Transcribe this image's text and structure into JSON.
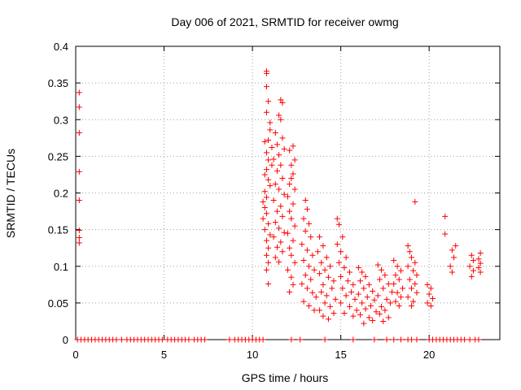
{
  "chart_data": {
    "type": "scatter",
    "title": "Day 006 of 2021, SRMTID for receiver owmg",
    "xlabel": "GPS time / hours",
    "ylabel": "SRMTID / TECUs",
    "xlim": [
      0,
      24
    ],
    "ylim": [
      0,
      0.4
    ],
    "x_ticks": [
      0,
      5,
      10,
      15,
      20
    ],
    "x_tick_labels": [
      "0",
      "5",
      "10",
      "15",
      "20"
    ],
    "y_ticks": [
      0,
      0.05,
      0.1,
      0.15,
      0.2,
      0.25,
      0.3,
      0.35,
      0.4
    ],
    "y_tick_labels": [
      "0",
      "0.05",
      "0.1",
      "0.15",
      "0.2",
      "0.25",
      "0.3",
      "0.35",
      "0.4"
    ],
    "grid": true,
    "marker": "+",
    "color": "#ff0000",
    "series": [
      {
        "name": "SRMTID",
        "points": [
          [
            0.2,
            0.337
          ],
          [
            0.2,
            0.317
          ],
          [
            0.2,
            0.282
          ],
          [
            0.2,
            0.229
          ],
          [
            0.2,
            0.19
          ],
          [
            0.2,
            0.149
          ],
          [
            0.2,
            0.139
          ],
          [
            0.2,
            0.132
          ],
          [
            0.1,
            0
          ],
          [
            0.3,
            0
          ],
          [
            0.5,
            0
          ],
          [
            0.7,
            0
          ],
          [
            0.9,
            0
          ],
          [
            1.1,
            0
          ],
          [
            1.3,
            0
          ],
          [
            1.5,
            0
          ],
          [
            1.7,
            0
          ],
          [
            1.9,
            0
          ],
          [
            2.1,
            0
          ],
          [
            2.3,
            0
          ],
          [
            2.6,
            0
          ],
          [
            2.9,
            0
          ],
          [
            3.1,
            0
          ],
          [
            3.3,
            0
          ],
          [
            3.5,
            0
          ],
          [
            3.7,
            0
          ],
          [
            3.9,
            0
          ],
          [
            4.1,
            0
          ],
          [
            4.3,
            0
          ],
          [
            4.5,
            0
          ],
          [
            4.7,
            0
          ],
          [
            4.9,
            0
          ],
          [
            5.2,
            0
          ],
          [
            5.4,
            0
          ],
          [
            5.6,
            0
          ],
          [
            5.8,
            0
          ],
          [
            6.0,
            0
          ],
          [
            6.2,
            0
          ],
          [
            6.4,
            0
          ],
          [
            6.7,
            0
          ],
          [
            6.9,
            0
          ],
          [
            7.1,
            0
          ],
          [
            7.3,
            0
          ],
          [
            8.7,
            0
          ],
          [
            9.0,
            0
          ],
          [
            9.2,
            0
          ],
          [
            9.4,
            0
          ],
          [
            9.6,
            0
          ],
          [
            9.8,
            0
          ],
          [
            10.0,
            0
          ],
          [
            10.2,
            0
          ],
          [
            10.4,
            0
          ],
          [
            10.6,
            0
          ],
          [
            12.2,
            0
          ],
          [
            12.7,
            0
          ],
          [
            14.1,
            0
          ],
          [
            15.7,
            0
          ],
          [
            16.9,
            0
          ],
          [
            17.6,
            0
          ],
          [
            18.0,
            0
          ],
          [
            18.4,
            0
          ],
          [
            18.8,
            0
          ],
          [
            19.0,
            0
          ],
          [
            19.3,
            0
          ],
          [
            20.0,
            0
          ],
          [
            20.2,
            0
          ],
          [
            20.4,
            0
          ],
          [
            20.6,
            0
          ],
          [
            20.8,
            0
          ],
          [
            21.0,
            0
          ],
          [
            21.2,
            0
          ],
          [
            21.4,
            0
          ],
          [
            21.6,
            0
          ],
          [
            21.8,
            0
          ],
          [
            22.0,
            0
          ],
          [
            22.3,
            0
          ],
          [
            22.6,
            0
          ],
          [
            22.8,
            0
          ],
          [
            10.8,
            0.366
          ],
          [
            10.8,
            0.363
          ],
          [
            10.8,
            0.345
          ],
          [
            10.9,
            0.325
          ],
          [
            10.8,
            0.31
          ],
          [
            11.0,
            0.296
          ],
          [
            11.0,
            0.286
          ],
          [
            10.9,
            0.272
          ],
          [
            10.7,
            0.27
          ],
          [
            11.1,
            0.262
          ],
          [
            10.8,
            0.255
          ],
          [
            10.9,
            0.245
          ],
          [
            11.1,
            0.238
          ],
          [
            10.8,
            0.232
          ],
          [
            10.7,
            0.225
          ],
          [
            10.9,
            0.218
          ],
          [
            11.0,
            0.21
          ],
          [
            10.7,
            0.202
          ],
          [
            10.8,
            0.194
          ],
          [
            10.6,
            0.188
          ],
          [
            10.7,
            0.18
          ],
          [
            10.8,
            0.172
          ],
          [
            10.6,
            0.165
          ],
          [
            10.9,
            0.158
          ],
          [
            10.7,
            0.15
          ],
          [
            11.0,
            0.143
          ],
          [
            10.8,
            0.135
          ],
          [
            10.9,
            0.125
          ],
          [
            10.8,
            0.115
          ],
          [
            10.9,
            0.105
          ],
          [
            10.8,
            0.095
          ],
          [
            10.9,
            0.076
          ],
          [
            11.6,
            0.327
          ],
          [
            11.7,
            0.323
          ],
          [
            11.5,
            0.306
          ],
          [
            11.6,
            0.3
          ],
          [
            11.3,
            0.282
          ],
          [
            11.7,
            0.275
          ],
          [
            11.4,
            0.266
          ],
          [
            11.8,
            0.26
          ],
          [
            11.5,
            0.252
          ],
          [
            11.2,
            0.246
          ],
          [
            11.6,
            0.238
          ],
          [
            11.4,
            0.23
          ],
          [
            11.7,
            0.22
          ],
          [
            11.3,
            0.212
          ],
          [
            11.5,
            0.205
          ],
          [
            11.8,
            0.198
          ],
          [
            11.2,
            0.19
          ],
          [
            11.6,
            0.182
          ],
          [
            11.4,
            0.175
          ],
          [
            11.7,
            0.168
          ],
          [
            11.3,
            0.16
          ],
          [
            11.5,
            0.152
          ],
          [
            11.8,
            0.146
          ],
          [
            11.2,
            0.14
          ],
          [
            11.6,
            0.133
          ],
          [
            11.4,
            0.126
          ],
          [
            11.7,
            0.12
          ],
          [
            11.3,
            0.112
          ],
          [
            11.5,
            0.106
          ],
          [
            12.3,
            0.264
          ],
          [
            12.1,
            0.258
          ],
          [
            12.4,
            0.245
          ],
          [
            12.2,
            0.238
          ],
          [
            12.3,
            0.226
          ],
          [
            12.2,
            0.22
          ],
          [
            12.1,
            0.212
          ],
          [
            12.4,
            0.205
          ],
          [
            12.0,
            0.195
          ],
          [
            12.3,
            0.185
          ],
          [
            12.1,
            0.175
          ],
          [
            12.2,
            0.165
          ],
          [
            12.4,
            0.155
          ],
          [
            12.0,
            0.145
          ],
          [
            12.3,
            0.135
          ],
          [
            12.1,
            0.125
          ],
          [
            12.2,
            0.115
          ],
          [
            12.4,
            0.105
          ],
          [
            12.0,
            0.095
          ],
          [
            12.2,
            0.085
          ],
          [
            12.3,
            0.075
          ],
          [
            12.1,
            0.065
          ],
          [
            13.0,
            0.19
          ],
          [
            13.1,
            0.178
          ],
          [
            12.9,
            0.165
          ],
          [
            13.2,
            0.158
          ],
          [
            13.0,
            0.148
          ],
          [
            13.3,
            0.14
          ],
          [
            12.8,
            0.13
          ],
          [
            13.1,
            0.122
          ],
          [
            13.4,
            0.115
          ],
          [
            12.9,
            0.108
          ],
          [
            13.2,
            0.1
          ],
          [
            13.5,
            0.095
          ],
          [
            13.0,
            0.088
          ],
          [
            13.3,
            0.082
          ],
          [
            12.8,
            0.076
          ],
          [
            13.1,
            0.07
          ],
          [
            13.4,
            0.064
          ],
          [
            13.6,
            0.058
          ],
          [
            12.9,
            0.052
          ],
          [
            13.2,
            0.046
          ],
          [
            13.5,
            0.04
          ],
          [
            13.8,
            0.14
          ],
          [
            14.0,
            0.128
          ],
          [
            13.7,
            0.12
          ],
          [
            14.2,
            0.112
          ],
          [
            13.9,
            0.105
          ],
          [
            14.4,
            0.1
          ],
          [
            14.1,
            0.095
          ],
          [
            13.8,
            0.09
          ],
          [
            14.3,
            0.085
          ],
          [
            14.6,
            0.08
          ],
          [
            14.0,
            0.075
          ],
          [
            14.5,
            0.07
          ],
          [
            13.9,
            0.065
          ],
          [
            14.2,
            0.06
          ],
          [
            14.7,
            0.055
          ],
          [
            14.1,
            0.05
          ],
          [
            14.4,
            0.045
          ],
          [
            13.8,
            0.04
          ],
          [
            14.6,
            0.036
          ],
          [
            14.0,
            0.032
          ],
          [
            14.3,
            0.028
          ],
          [
            14.8,
            0.165
          ],
          [
            14.9,
            0.157
          ],
          [
            15.1,
            0.14
          ],
          [
            14.8,
            0.13
          ],
          [
            15.0,
            0.12
          ],
          [
            15.3,
            0.112
          ],
          [
            14.9,
            0.105
          ],
          [
            15.2,
            0.098
          ],
          [
            15.5,
            0.092
          ],
          [
            15.0,
            0.086
          ],
          [
            15.4,
            0.08
          ],
          [
            15.7,
            0.075
          ],
          [
            15.1,
            0.07
          ],
          [
            15.6,
            0.065
          ],
          [
            15.3,
            0.06
          ],
          [
            15.8,
            0.055
          ],
          [
            15.0,
            0.05
          ],
          [
            15.5,
            0.045
          ],
          [
            15.9,
            0.04
          ],
          [
            15.2,
            0.036
          ],
          [
            15.7,
            0.032
          ],
          [
            16.0,
            0.098
          ],
          [
            16.2,
            0.092
          ],
          [
            16.4,
            0.086
          ],
          [
            16.1,
            0.08
          ],
          [
            16.6,
            0.075
          ],
          [
            16.3,
            0.07
          ],
          [
            16.8,
            0.066
          ],
          [
            16.0,
            0.062
          ],
          [
            16.5,
            0.058
          ],
          [
            16.9,
            0.054
          ],
          [
            16.2,
            0.05
          ],
          [
            16.7,
            0.046
          ],
          [
            16.4,
            0.042
          ],
          [
            17.0,
            0.038
          ],
          [
            16.1,
            0.034
          ],
          [
            16.6,
            0.03
          ],
          [
            16.8,
            0.026
          ],
          [
            16.3,
            0.022
          ],
          [
            17.1,
            0.102
          ],
          [
            17.3,
            0.095
          ],
          [
            17.5,
            0.088
          ],
          [
            17.2,
            0.082
          ],
          [
            17.7,
            0.076
          ],
          [
            17.4,
            0.07
          ],
          [
            17.9,
            0.065
          ],
          [
            17.1,
            0.06
          ],
          [
            17.6,
            0.055
          ],
          [
            17.8,
            0.05
          ],
          [
            17.3,
            0.045
          ],
          [
            17.5,
            0.04
          ],
          [
            17.2,
            0.035
          ],
          [
            17.7,
            0.03
          ],
          [
            17.4,
            0.025
          ],
          [
            18.0,
            0.108
          ],
          [
            18.2,
            0.1
          ],
          [
            18.4,
            0.094
          ],
          [
            18.1,
            0.088
          ],
          [
            18.3,
            0.082
          ],
          [
            18.0,
            0.076
          ],
          [
            18.5,
            0.07
          ],
          [
            18.2,
            0.064
          ],
          [
            18.4,
            0.058
          ],
          [
            18.1,
            0.052
          ],
          [
            18.3,
            0.046
          ],
          [
            18.8,
            0.128
          ],
          [
            18.9,
            0.12
          ],
          [
            19.0,
            0.112
          ],
          [
            19.2,
            0.105
          ],
          [
            18.8,
            0.1
          ],
          [
            19.1,
            0.094
          ],
          [
            19.3,
            0.088
          ],
          [
            18.9,
            0.082
          ],
          [
            19.2,
            0.076
          ],
          [
            19.0,
            0.07
          ],
          [
            19.3,
            0.064
          ],
          [
            18.8,
            0.058
          ],
          [
            19.1,
            0.052
          ],
          [
            19.0,
            0.046
          ],
          [
            19.2,
            0.188
          ],
          [
            19.9,
            0.075
          ],
          [
            20.1,
            0.07
          ],
          [
            20.0,
            0.062
          ],
          [
            20.2,
            0.056
          ],
          [
            19.9,
            0.05
          ],
          [
            20.1,
            0.046
          ],
          [
            20.9,
            0.168
          ],
          [
            20.9,
            0.144
          ],
          [
            21.3,
            0.122
          ],
          [
            21.4,
            0.112
          ],
          [
            21.2,
            0.1
          ],
          [
            21.3,
            0.092
          ],
          [
            21.5,
            0.128
          ],
          [
            22.4,
            0.115
          ],
          [
            22.5,
            0.108
          ],
          [
            22.3,
            0.1
          ],
          [
            22.5,
            0.094
          ],
          [
            22.4,
            0.086
          ],
          [
            22.9,
            0.118
          ],
          [
            22.8,
            0.11
          ],
          [
            22.9,
            0.104
          ],
          [
            22.8,
            0.098
          ],
          [
            22.9,
            0.092
          ]
        ]
      }
    ]
  }
}
